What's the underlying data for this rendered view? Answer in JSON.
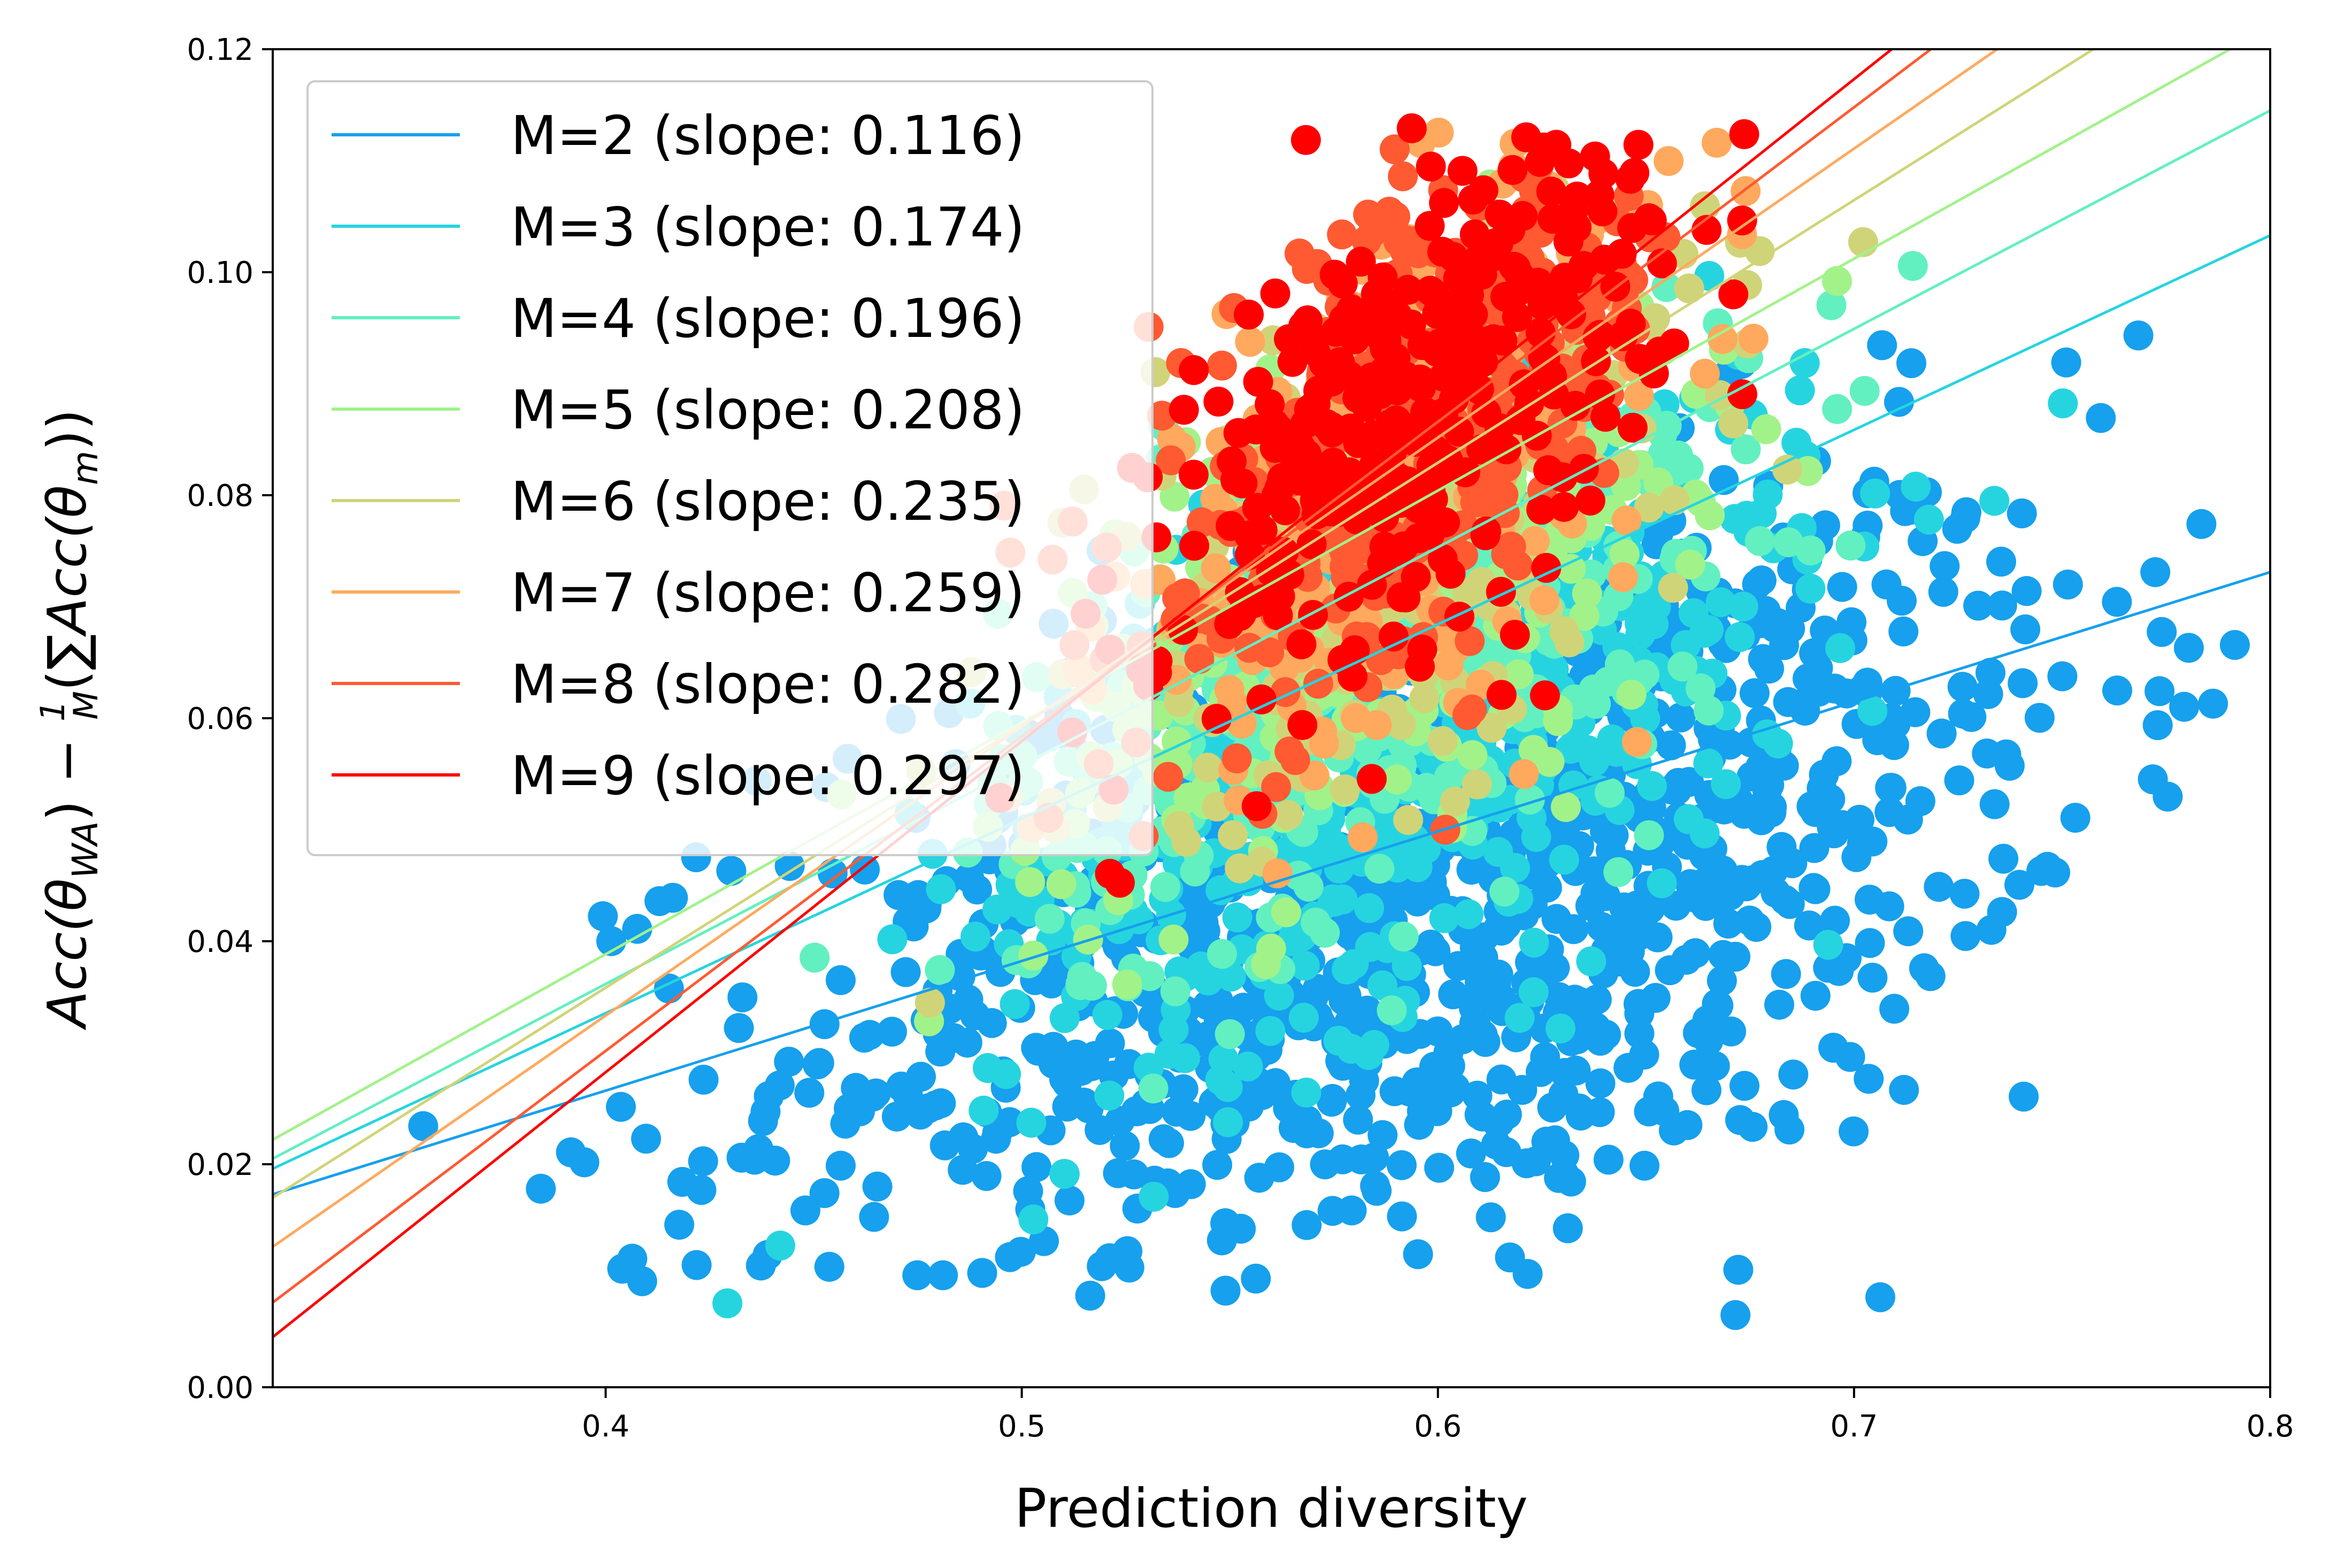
{
  "chart_data": {
    "type": "scatter",
    "title": "",
    "xlabel": "Prediction diversity",
    "ylabel": "Acc(θWA) − 1/M (∑Acc(θm))",
    "ylabel_parts": {
      "p1": "Acc(",
      "theta": "θ",
      "sub_wa": "WA",
      "p2": ") − ",
      "frac_num": "1",
      "frac_den": "M",
      "p3": "(",
      "sigma": "∑",
      "p4": "Acc(",
      "sub_m": "m",
      "p5": "))"
    },
    "xlim": [
      0.32,
      0.8
    ],
    "ylim": [
      0.0,
      0.12
    ],
    "xticks": [
      0.4,
      0.5,
      0.6,
      0.7,
      0.8
    ],
    "xtick_labels": [
      "0.4",
      "0.5",
      "0.6",
      "0.7",
      "0.8"
    ],
    "yticks": [
      0.0,
      0.02,
      0.04,
      0.06,
      0.08,
      0.1,
      0.12
    ],
    "ytick_labels": [
      "0.00",
      "0.02",
      "0.04",
      "0.06",
      "0.08",
      "0.10",
      "0.12"
    ],
    "grid": false,
    "legend_position": "top-left",
    "series": [
      {
        "name": "M=2",
        "label": "M=2 (slope: 0.116)",
        "slope": 0.116,
        "color": "#16a0ed",
        "fit": {
          "x0": 0.32,
          "y0": 0.0173,
          "x1": 0.8,
          "y1": 0.0731
        },
        "cloud": {
          "cx": 0.6,
          "cy": 0.045,
          "sx": 0.078,
          "sy": 0.016,
          "n": 1200
        }
      },
      {
        "name": "M=3",
        "label": "M=3 (slope: 0.174)",
        "slope": 0.174,
        "color": "#26d4e0",
        "fit": {
          "x0": 0.32,
          "y0": 0.0196,
          "x1": 0.8,
          "y1": 0.1033
        },
        "cloud": {
          "cx": 0.59,
          "cy": 0.058,
          "sx": 0.05,
          "sy": 0.012,
          "n": 500
        }
      },
      {
        "name": "M=4",
        "label": "M=4 (slope: 0.196)",
        "slope": 0.196,
        "color": "#62f0c0",
        "fit": {
          "x0": 0.32,
          "y0": 0.0205,
          "x1": 0.8,
          "y1": 0.1145
        },
        "cloud": {
          "cx": 0.585,
          "cy": 0.065,
          "sx": 0.045,
          "sy": 0.011,
          "n": 350
        }
      },
      {
        "name": "M=5",
        "label": "M=5 (slope: 0.208)",
        "slope": 0.208,
        "color": "#a2f28a",
        "fit": {
          "x0": 0.32,
          "y0": 0.0222,
          "x1": 0.8,
          "y1": 0.122
        },
        "cloud": {
          "cx": 0.585,
          "cy": 0.072,
          "sx": 0.04,
          "sy": 0.011,
          "n": 300
        }
      },
      {
        "name": "M=6",
        "label": "M=6 (slope: 0.235)",
        "slope": 0.235,
        "color": "#d0d478",
        "fit": {
          "x0": 0.32,
          "y0": 0.017,
          "x1": 0.8,
          "y1": 0.13
        },
        "cloud": {
          "cx": 0.59,
          "cy": 0.077,
          "sx": 0.037,
          "sy": 0.011,
          "n": 280
        }
      },
      {
        "name": "M=7",
        "label": "M=7 (slope: 0.259)",
        "slope": 0.259,
        "color": "#ffa95e",
        "fit": {
          "x0": 0.32,
          "y0": 0.0126,
          "x1": 0.8,
          "y1": 0.137
        },
        "cloud": {
          "cx": 0.59,
          "cy": 0.082,
          "sx": 0.035,
          "sy": 0.011,
          "n": 280
        }
      },
      {
        "name": "M=8",
        "label": "M=8 (slope: 0.282)",
        "slope": 0.282,
        "color": "#ff5a32",
        "fit": {
          "x0": 0.32,
          "y0": 0.0076,
          "x1": 0.8,
          "y1": 0.143
        },
        "cloud": {
          "cx": 0.595,
          "cy": 0.086,
          "sx": 0.033,
          "sy": 0.011,
          "n": 300
        }
      },
      {
        "name": "M=9",
        "label": "M=9 (slope: 0.297)",
        "slope": 0.297,
        "color": "#ff0000",
        "fit": {
          "x0": 0.32,
          "y0": 0.0045,
          "x1": 0.8,
          "y1": 0.147
        },
        "cloud": {
          "cx": 0.595,
          "cy": 0.089,
          "sx": 0.03,
          "sy": 0.01,
          "n": 350
        }
      }
    ]
  }
}
